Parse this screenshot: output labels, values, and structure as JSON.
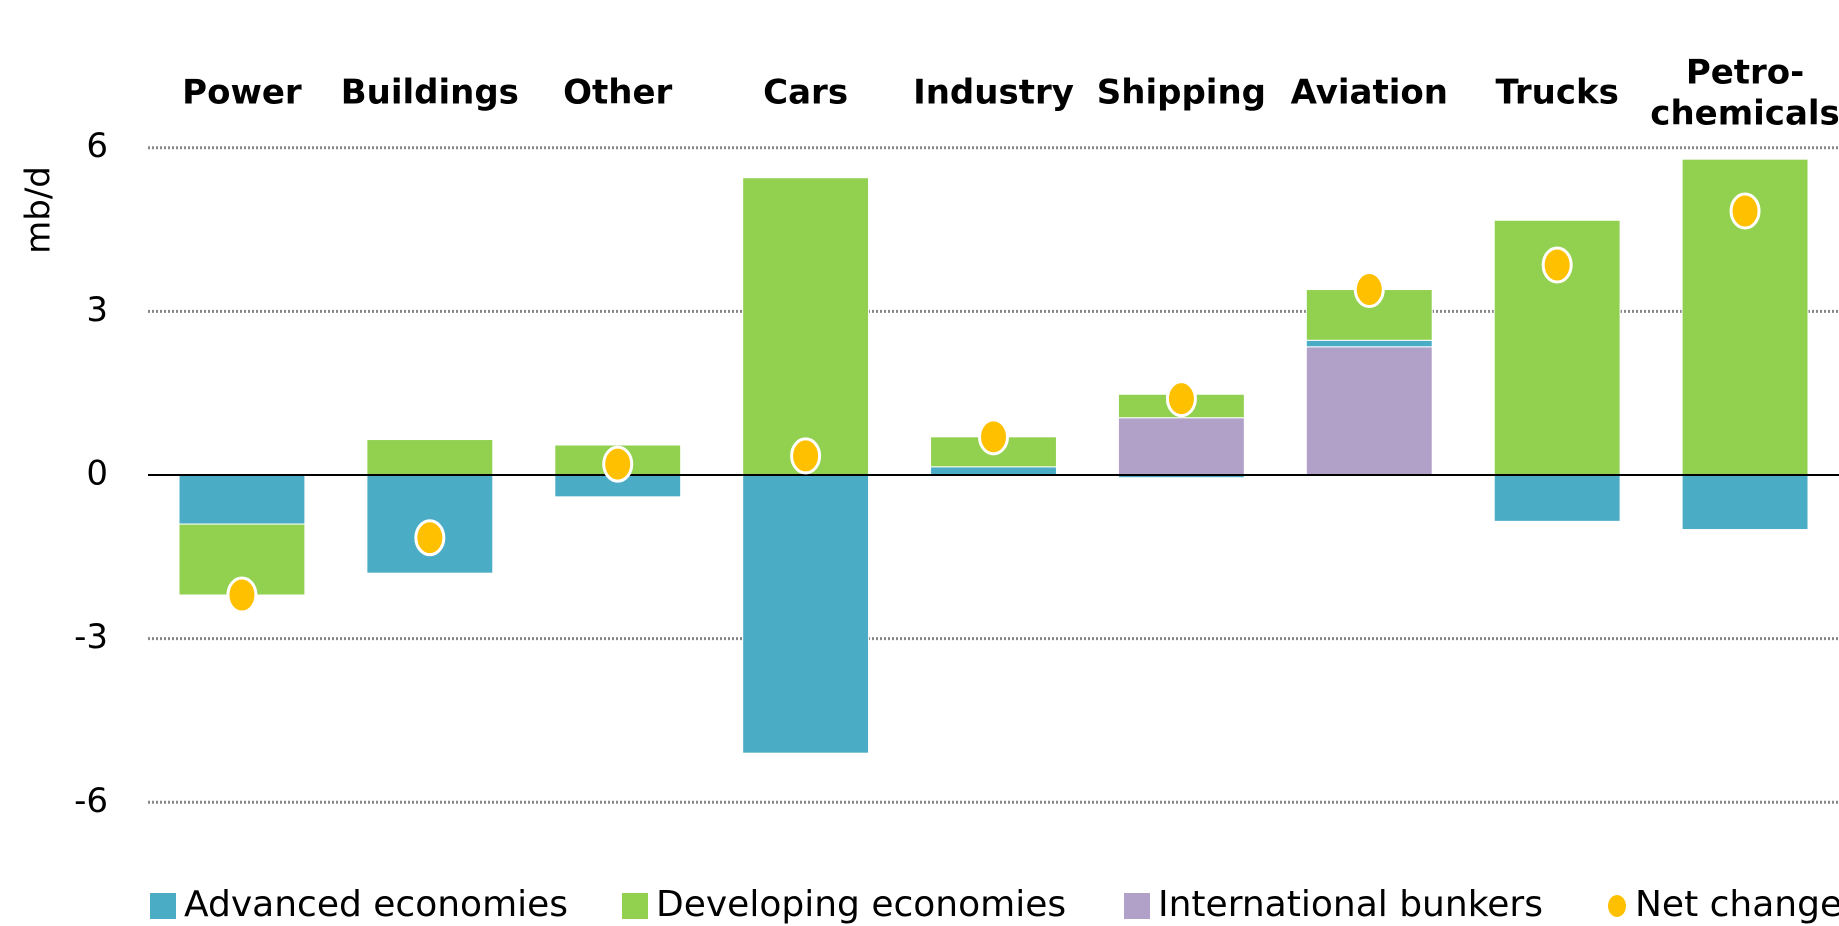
{
  "chart_data": {
    "type": "stacked_bar",
    "y_label": "mb/d",
    "categories": [
      "Power",
      "Buildings",
      "Other",
      "Cars",
      "Industry",
      "Shipping",
      "Aviation",
      "Trucks",
      "Petro-\nchemicals"
    ],
    "series": [
      {
        "name": "Advanced economies",
        "color": "#4bacc6",
        "values": [
          -0.9,
          -1.8,
          -0.4,
          -5.1,
          0.15,
          -0.05,
          0.12,
          -0.85,
          -1.0
        ]
      },
      {
        "name": "Developing economies",
        "color": "#92d050",
        "values": [
          -1.3,
          0.65,
          0.55,
          5.45,
          0.55,
          0.43,
          0.93,
          4.67,
          5.79
        ]
      },
      {
        "name": "International bunkers",
        "color": "#b1a0c7",
        "values": [
          null,
          null,
          null,
          null,
          null,
          1.05,
          2.35,
          null,
          null
        ]
      },
      {
        "name": "Net change",
        "color": "#ffc000",
        "type": "marker",
        "values": [
          -2.2,
          -1.15,
          0.2,
          0.35,
          0.7,
          1.4,
          3.4,
          3.85,
          4.84
        ]
      }
    ],
    "ylim": [
      -6.6,
      6.6
    ],
    "yticks": [
      -6,
      -3,
      0,
      3,
      6
    ],
    "grid": true
  }
}
